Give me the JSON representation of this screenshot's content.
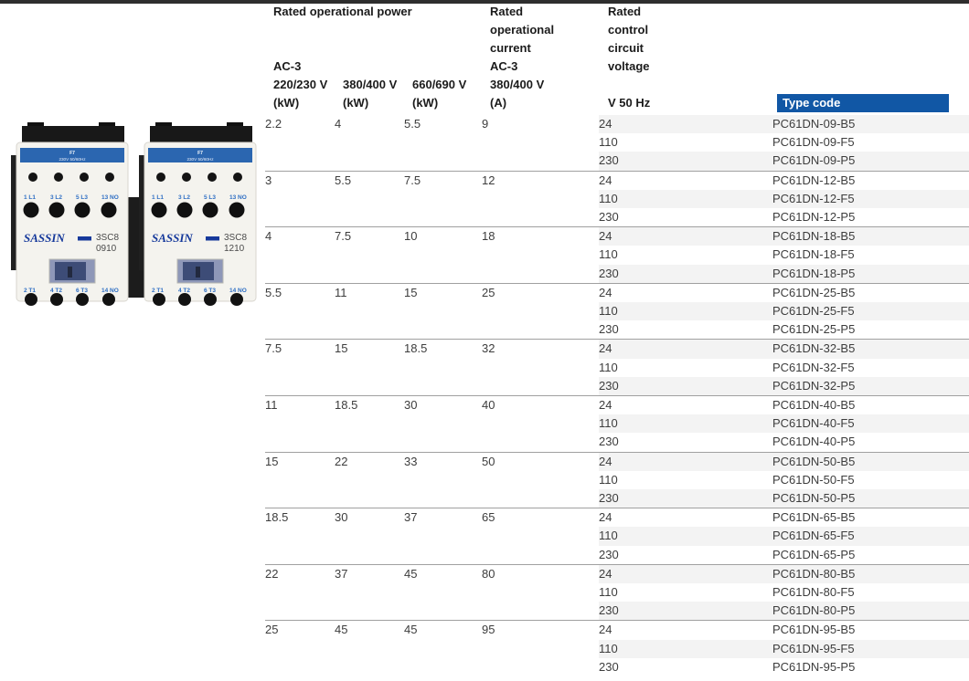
{
  "colors": {
    "type_code_bg": "#1157a5",
    "zebra": "#f3f3f3",
    "brand_blue": "#16399b",
    "label_blue": "#2f6fc4",
    "band_blue": "#2b66b0"
  },
  "product_image": {
    "alt": "Two SASSIN 3SC8 series contactors",
    "brand": "SASSIN",
    "units": [
      {
        "model_line1": "3SC8",
        "model_line2": "0910",
        "coil_label": [
          "F7",
          "230V 50/60Hz"
        ],
        "top_terminals": [
          "1 L1",
          "3 L2",
          "5 L3",
          "13 NO"
        ],
        "bottom_terminals": [
          "2 T1",
          "4 T2",
          "6 T3",
          "14 NO"
        ]
      },
      {
        "model_line1": "3SC8",
        "model_line2": "1210",
        "coil_label": [
          "F7",
          "230V 50/60Hz"
        ],
        "top_terminals": [
          "1 L1",
          "3 L2",
          "5 L3",
          "13 NO"
        ],
        "bottom_terminals": [
          "2 T1",
          "4 T2",
          "6 T3",
          "14 NO"
        ]
      }
    ]
  },
  "table": {
    "headers": {
      "power_group": "Rated operational power",
      "power_sub": [
        "AC-3",
        "220/230 V",
        "(kW)"
      ],
      "col2_sub": [
        "380/400 V",
        "(kW)"
      ],
      "col3_sub": [
        "660/690 V",
        "(kW)"
      ],
      "current": [
        "Rated",
        "operational",
        "current",
        "AC-3",
        "380/400 V",
        "(A)"
      ],
      "voltage": [
        "Rated",
        "control",
        "circuit",
        "voltage"
      ],
      "voltage_freq": "V 50 Hz",
      "type_code": "Type code"
    },
    "groups": [
      {
        "p220": "2.2",
        "p380": "4",
        "p660": "5.5",
        "current": "9",
        "rows": [
          {
            "v": "24",
            "code": "PC61DN-09-B5"
          },
          {
            "v": "110",
            "code": "PC61DN-09-F5"
          },
          {
            "v": "230",
            "code": "PC61DN-09-P5"
          }
        ]
      },
      {
        "p220": "3",
        "p380": "5.5",
        "p660": "7.5",
        "current": "12",
        "rows": [
          {
            "v": "24",
            "code": "PC61DN-12-B5"
          },
          {
            "v": "110",
            "code": "PC61DN-12-F5"
          },
          {
            "v": "230",
            "code": "PC61DN-12-P5"
          }
        ]
      },
      {
        "p220": "4",
        "p380": "7.5",
        "p660": "10",
        "current": "18",
        "rows": [
          {
            "v": "24",
            "code": "PC61DN-18-B5"
          },
          {
            "v": "110",
            "code": "PC61DN-18-F5"
          },
          {
            "v": "230",
            "code": "PC61DN-18-P5"
          }
        ]
      },
      {
        "p220": "5.5",
        "p380": "11",
        "p660": "15",
        "current": "25",
        "rows": [
          {
            "v": "24",
            "code": "PC61DN-25-B5"
          },
          {
            "v": "110",
            "code": "PC61DN-25-F5"
          },
          {
            "v": "230",
            "code": "PC61DN-25-P5"
          }
        ]
      },
      {
        "p220": "7.5",
        "p380": "15",
        "p660": "18.5",
        "current": "32",
        "rows": [
          {
            "v": "24",
            "code": "PC61DN-32-B5"
          },
          {
            "v": "110",
            "code": "PC61DN-32-F5"
          },
          {
            "v": "230",
            "code": "PC61DN-32-P5"
          }
        ]
      },
      {
        "p220": "11",
        "p380": "18.5",
        "p660": "30",
        "current": "40",
        "rows": [
          {
            "v": "24",
            "code": "PC61DN-40-B5"
          },
          {
            "v": "110",
            "code": "PC61DN-40-F5"
          },
          {
            "v": "230",
            "code": "PC61DN-40-P5"
          }
        ]
      },
      {
        "p220": "15",
        "p380": "22",
        "p660": "33",
        "current": "50",
        "rows": [
          {
            "v": "24",
            "code": "PC61DN-50-B5"
          },
          {
            "v": "110",
            "code": "PC61DN-50-F5"
          },
          {
            "v": "230",
            "code": "PC61DN-50-P5"
          }
        ]
      },
      {
        "p220": "18.5",
        "p380": "30",
        "p660": "37",
        "current": "65",
        "rows": [
          {
            "v": "24",
            "code": "PC61DN-65-B5"
          },
          {
            "v": "110",
            "code": "PC61DN-65-F5"
          },
          {
            "v": "230",
            "code": "PC61DN-65-P5"
          }
        ]
      },
      {
        "p220": "22",
        "p380": "37",
        "p660": "45",
        "current": "80",
        "rows": [
          {
            "v": "24",
            "code": "PC61DN-80-B5"
          },
          {
            "v": "110",
            "code": "PC61DN-80-F5"
          },
          {
            "v": "230",
            "code": "PC61DN-80-P5"
          }
        ]
      },
      {
        "p220": "25",
        "p380": "45",
        "p660": "45",
        "current": "95",
        "rows": [
          {
            "v": "24",
            "code": "PC61DN-95-B5"
          },
          {
            "v": "110",
            "code": "PC61DN-95-F5"
          },
          {
            "v": "230",
            "code": "PC61DN-95-P5"
          }
        ]
      }
    ]
  }
}
